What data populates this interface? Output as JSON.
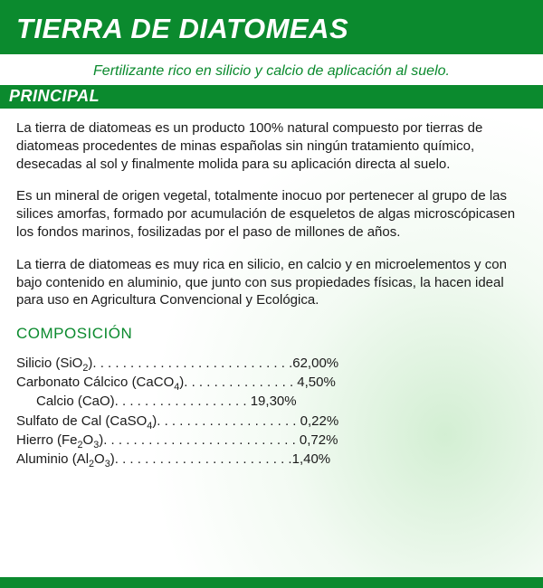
{
  "colors": {
    "brand_green": "#0b8a2e",
    "text": "#1a1a1a",
    "background": "#ffffff",
    "halo_green": "rgba(175,225,175,0.55)"
  },
  "typography": {
    "title_fontsize": 31,
    "subtitle_fontsize": 16,
    "section_fontsize": 18,
    "body_fontsize": 15,
    "comp_title_fontsize": 17,
    "italic_headers": true,
    "font_family": "Arial Narrow / condensed sans"
  },
  "header": {
    "title": "TIERRA DE DIATOMEAS"
  },
  "subtitle": "Fertilizante rico en silicio y calcio de aplicación al suelo.",
  "section_label": "PRINCIPAL",
  "paragraphs": {
    "p1": "La tierra de diatomeas es un producto 100% natural compuesto por tierras de diatomeas procedentes de minas españolas sin ningún tratamiento químico, desecadas al sol y finalmente molida para su aplicación directa al suelo.",
    "p2": "Es un mineral de origen vegetal, totalmente inocuo por pertenecer al grupo de las silices amorfas, formado por acumulación de esqueletos de algas microscópicasen los fondos marinos, fosilizadas por el paso de millones de años.",
    "p3": "La tierra de diatomeas es muy rica en silicio, en calcio y en microelementos y con bajo contenido en aluminio, que junto con sus propiedades físicas, la hacen ideal para uso en Agricultura Convencional y Ecológica."
  },
  "composition": {
    "title": "COMPOSICIÓN",
    "rows": [
      {
        "label_html": "Silicio (SiO<sub>2</sub>). . . . . . . . . . . . . . . . . . . . . . . . . . .62,00%",
        "indent": false,
        "name": "Silicio (SiO2)",
        "value": "62,00%"
      },
      {
        "label_html": "Carbonato Cálcico (CaCO<sub>4</sub>). . . . . . . . . . . . . . . 4,50%",
        "indent": false,
        "name": "Carbonato Cálcico (CaCO4)",
        "value": "4,50%"
      },
      {
        "label_html": "Calcio (CaO). . . . . . . . . . . . . . . . . . 19,30%",
        "indent": true,
        "name": "Calcio (CaO)",
        "value": "19,30%"
      },
      {
        "label_html": "Sulfato de Cal (CaSO<sub>4</sub>). . . . . . . . . . . . . . . . . . . 0,22%",
        "indent": false,
        "name": "Sulfato de Cal (CaSO4)",
        "value": "0,22%"
      },
      {
        "label_html": "Hierro (Fe<sub>2</sub>O<sub>3</sub>). . . . . . . . . . . . . . . . . . . . . . . . . . 0,72%",
        "indent": false,
        "name": "Hierro (Fe2O3)",
        "value": "0,72%"
      },
      {
        "label_html": "Aluminio (Al<sub>2</sub>O<sub>3</sub>). . . . . . . . . . . . . . . . . . . . . . . .1,40%",
        "indent": false,
        "name": "Aluminio (Al2O3)",
        "value": "1,40%"
      }
    ]
  }
}
